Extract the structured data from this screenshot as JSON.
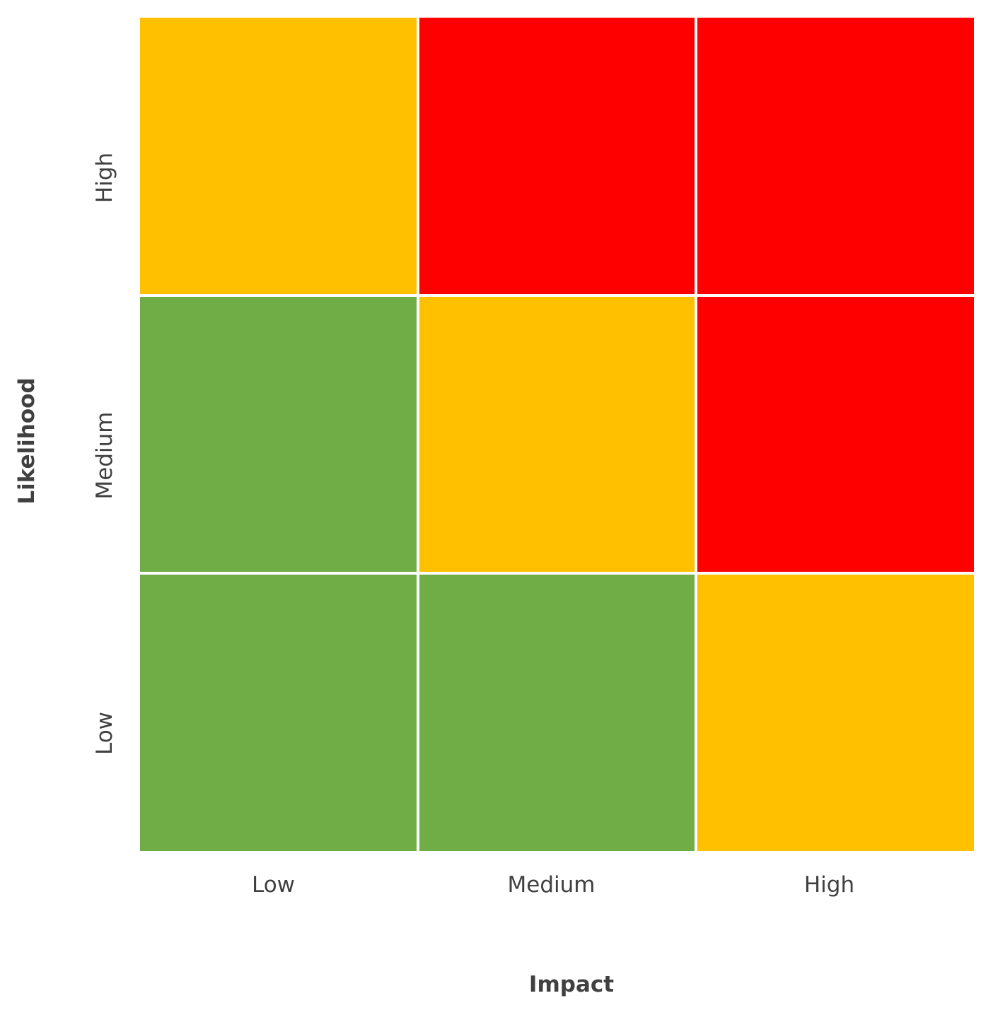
{
  "chart_data": {
    "type": "heatmap",
    "title": "",
    "xlabel": "Impact",
    "ylabel": "Likelihood",
    "x_categories": [
      "Low",
      "Medium",
      "High"
    ],
    "y_categories": [
      "Low",
      "Medium",
      "High"
    ],
    "levels": {
      "low": "#70AD47",
      "medium": "#FFC000",
      "high": "#FF0000"
    },
    "cells": [
      {
        "x": "Low",
        "y": "High",
        "level": "medium"
      },
      {
        "x": "Medium",
        "y": "High",
        "level": "high"
      },
      {
        "x": "High",
        "y": "High",
        "level": "high"
      },
      {
        "x": "Low",
        "y": "Medium",
        "level": "low"
      },
      {
        "x": "Medium",
        "y": "Medium",
        "level": "medium"
      },
      {
        "x": "High",
        "y": "Medium",
        "level": "high"
      },
      {
        "x": "Low",
        "y": "Low",
        "level": "low"
      },
      {
        "x": "Medium",
        "y": "Low",
        "level": "low"
      },
      {
        "x": "High",
        "y": "Low",
        "level": "medium"
      }
    ],
    "grid": true,
    "legend": false
  }
}
